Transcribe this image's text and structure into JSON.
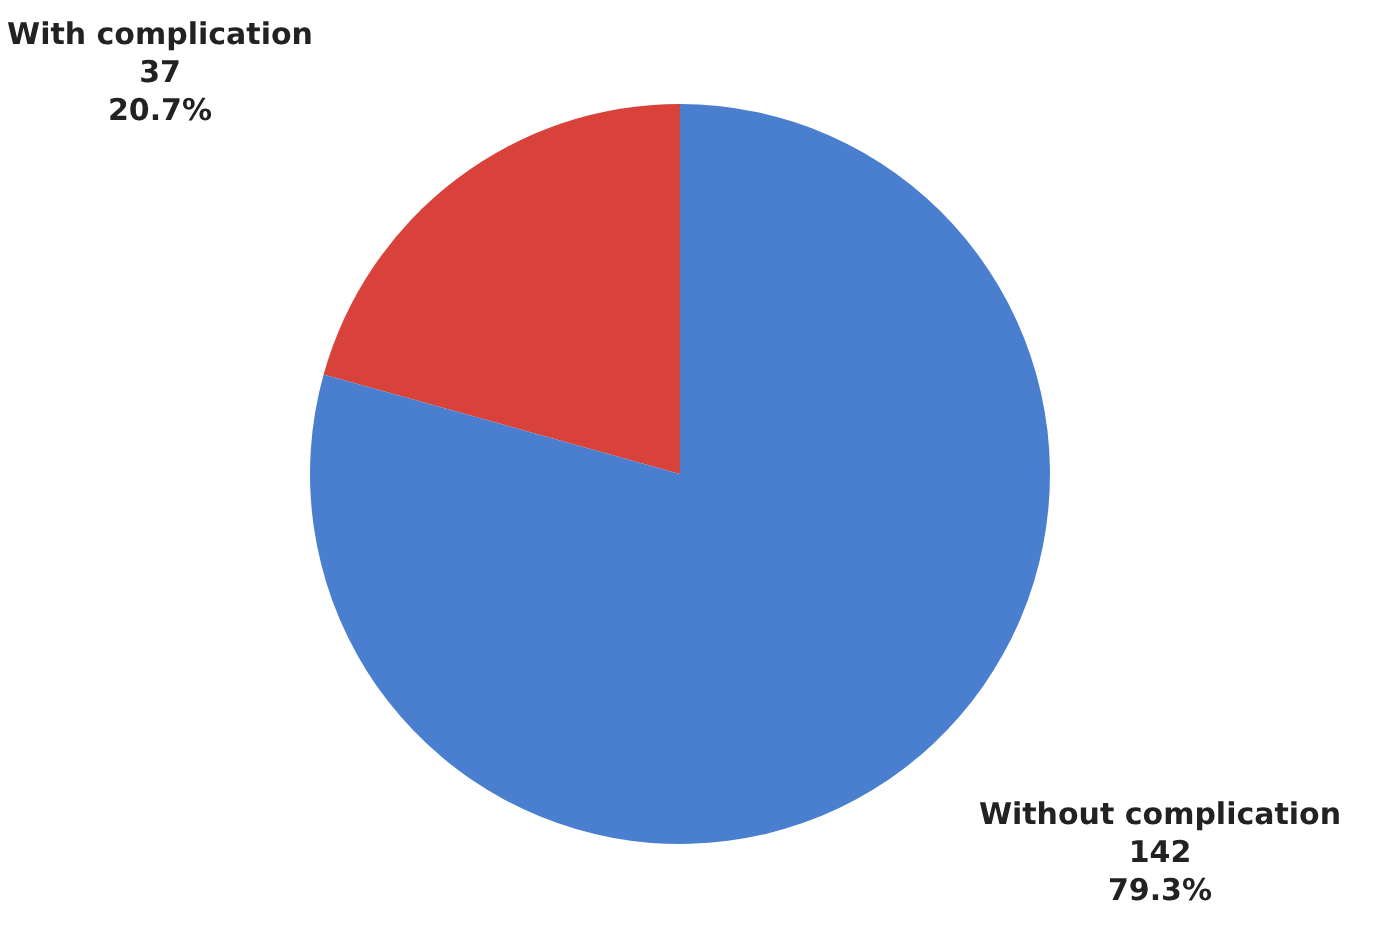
{
  "chart_data": {
    "type": "pie",
    "categories": [
      "With complication",
      "Without complication"
    ],
    "values": [
      37,
      142
    ],
    "colors": [
      "#d9423b",
      "#4a7fcf"
    ],
    "value_labels": [
      "37\n20.7%",
      "142\n79.3%"
    ]
  }
}
